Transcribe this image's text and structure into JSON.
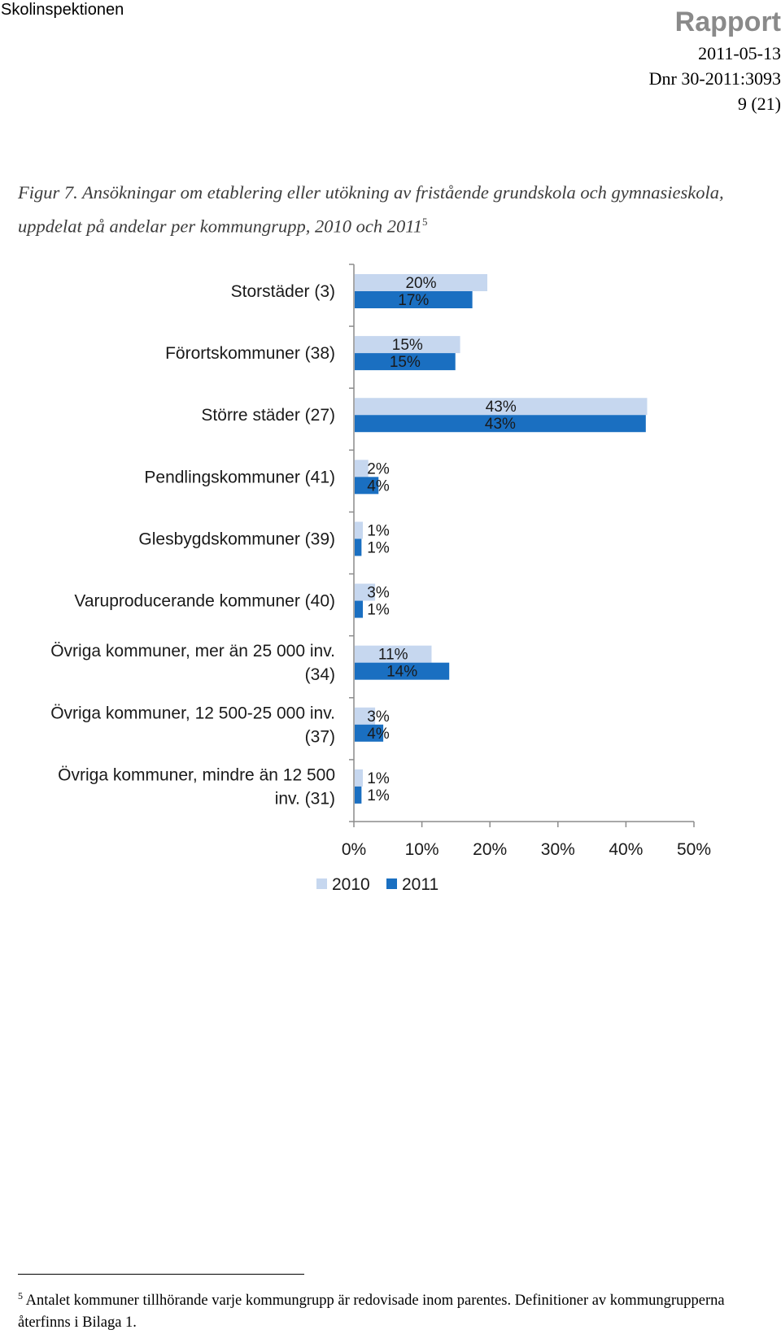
{
  "header": {
    "organization": "Skolinspektionen",
    "document_type": "Rapport",
    "date": "2011-05-13",
    "registration_number": "Dnr 30-2011:3093",
    "page": "9 (21)"
  },
  "caption": {
    "text": "Figur 7. Ansökningar om etablering eller utökning av fristående grundskola och gymnasieskola, uppdelat på andelar per kommungrupp, 2010 och 2011",
    "footnote_ref": "5"
  },
  "chart_data": {
    "type": "bar",
    "orientation": "horizontal",
    "categories": [
      [
        "Storstäder (3)"
      ],
      [
        "Förortskommuner (38)"
      ],
      [
        "Större städer (27)"
      ],
      [
        "Pendlingskommuner (41)"
      ],
      [
        "Glesbygdskommuner (39)"
      ],
      [
        "Varuproducerande kommuner (40)"
      ],
      [
        "Övriga kommuner, mer än 25 000 inv.",
        "(34)"
      ],
      [
        "Övriga kommuner, 12 500-25 000 inv.",
        "(37)"
      ],
      [
        "Övriga kommuner, mindre än 12 500",
        "inv. (31)"
      ]
    ],
    "series": [
      {
        "name": "2010",
        "color": "#c6d7ef",
        "values": [
          19.5,
          15.5,
          43.0,
          2.0,
          1.2,
          3.0,
          11.3,
          3.0,
          1.2
        ],
        "labels": [
          "20%",
          "15%",
          "43%",
          "2%",
          "1%",
          "3%",
          "11%",
          "3%",
          "1%"
        ]
      },
      {
        "name": "2011",
        "color": "#1a6fc1",
        "values": [
          17.3,
          14.8,
          42.8,
          3.5,
          1.0,
          1.2,
          13.9,
          4.2,
          1.0
        ],
        "labels": [
          "17%",
          "15%",
          "43%",
          "4%",
          "1%",
          "1%",
          "14%",
          "4%",
          "1%"
        ]
      }
    ],
    "xlim": [
      0,
      50
    ],
    "xticks": [
      "0%",
      "10%",
      "20%",
      "30%",
      "40%",
      "50%"
    ],
    "legend": {
      "position": "bottom",
      "entries": [
        "2010",
        "2011"
      ]
    },
    "grid": false
  },
  "footnote": {
    "number": "5",
    "text": "Antalet kommuner tillhörande varje kommungrupp är redovisade inom parentes. Definitioner av kommungrupperna återfinns i Bilaga 1."
  }
}
